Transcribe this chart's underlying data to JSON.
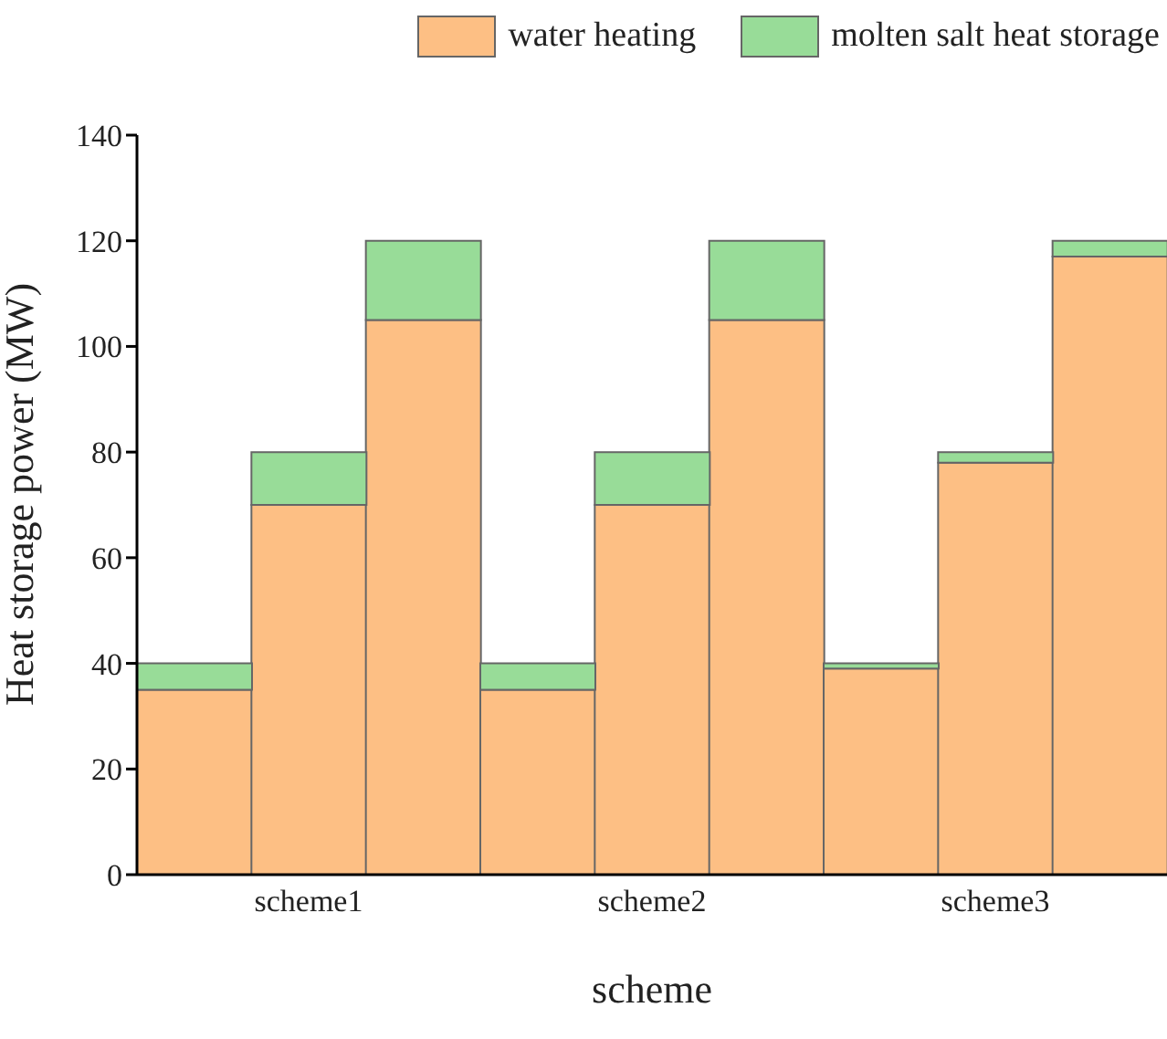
{
  "chart_data": {
    "type": "bar",
    "stacked": true,
    "xlabel": "scheme",
    "ylabel": "Heat storage power (MW)",
    "categories": [
      null,
      "scheme1",
      null,
      null,
      "scheme2",
      null,
      null,
      "scheme3",
      null
    ],
    "series": [
      {
        "name": "water heating",
        "color": "#fdbf84",
        "values": [
          35,
          70,
          105,
          35,
          70,
          105,
          39,
          78,
          117
        ]
      },
      {
        "name": "molten salt heat storage",
        "color": "#98dc98",
        "values": [
          5,
          10,
          15,
          5,
          10,
          15,
          1,
          2,
          3
        ]
      }
    ],
    "ylim": [
      0,
      140
    ],
    "yticks": [
      0,
      20,
      40,
      60,
      80,
      100,
      120,
      140
    ],
    "grid": false,
    "legend": "top right"
  }
}
